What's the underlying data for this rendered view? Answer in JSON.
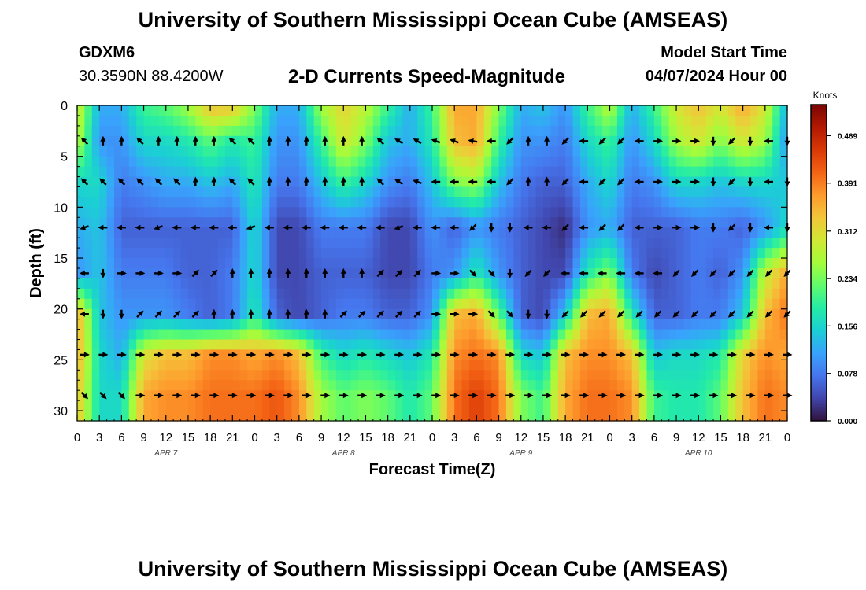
{
  "header": {
    "title": "University of Southern Mississippi Ocean Cube (AMSEAS)",
    "station_id": "GDXM6",
    "station_location": "30.3590N  88.4200W",
    "plot_title": "2-D Currents Speed-Magnitude",
    "model_start_label": "Model Start Time",
    "model_start_value": "04/07/2024 Hour 00"
  },
  "footer": {
    "title": "University of Southern Mississippi Ocean Cube (AMSEAS)"
  },
  "chart_data": {
    "type": "heatmap",
    "title": "2-D Currents Speed-Magnitude",
    "xlabel": "Forecast Time(Z)",
    "ylabel": "Depth (ft)",
    "x_ticks": [
      "0",
      "3",
      "6",
      "9",
      "12",
      "15",
      "18",
      "21",
      "0",
      "3",
      "6",
      "9",
      "12",
      "15",
      "18",
      "21",
      "0",
      "3",
      "6",
      "9",
      "12",
      "15",
      "18",
      "21",
      "0",
      "3",
      "6",
      "9",
      "12",
      "15",
      "18",
      "21",
      "0"
    ],
    "date_labels": [
      {
        "label": "APR 7",
        "tick_index": 4
      },
      {
        "label": "APR 8",
        "tick_index": 12
      },
      {
        "label": "APR 9",
        "tick_index": 20
      },
      {
        "label": "APR 10",
        "tick_index": 28
      }
    ],
    "x_range_hours": [
      0,
      96
    ],
    "y_ticks": [
      0,
      5,
      10,
      15,
      20,
      25,
      30
    ],
    "ylim": [
      0,
      31
    ],
    "depth_rows_ft": [
      3.5,
      7.5,
      12,
      16.5,
      20.5,
      24.5,
      28.5
    ],
    "colorbar": {
      "unit": "Knots",
      "min": 0.0,
      "max": 0.52,
      "tick_values": [
        0.0,
        0.078,
        0.156,
        0.234,
        0.312,
        0.391,
        0.469
      ],
      "tick_labels": [
        "0.000",
        "0.078",
        "0.156",
        "0.234",
        "0.312",
        "0.391",
        "0.469"
      ],
      "colors": [
        "#30123b",
        "#4145ab",
        "#4675ed",
        "#39a2fc",
        "#1bcfd4",
        "#24eca6",
        "#61fc6c",
        "#a4fc3b",
        "#d1e834",
        "#f3c63a",
        "#fe9b2d",
        "#f36315",
        "#d93806",
        "#b11901",
        "#7a0402"
      ]
    },
    "speed_grid_hours": [
      0,
      3,
      6,
      9,
      12,
      15,
      18,
      21,
      24,
      27,
      30,
      33,
      36,
      39,
      42,
      45,
      48,
      51,
      54,
      57,
      60,
      63,
      66,
      69,
      72,
      75,
      78,
      81,
      84,
      87,
      90,
      93,
      96
    ],
    "speed_grid_depths_ft": [
      0,
      3.5,
      7.5,
      12,
      16.5,
      20.5,
      24.5,
      28.5,
      31
    ],
    "speed_knots": [
      [
        0.3,
        0.12,
        0.12,
        0.2,
        0.22,
        0.26,
        0.34,
        0.34,
        0.24,
        0.12,
        0.12,
        0.26,
        0.32,
        0.28,
        0.2,
        0.12,
        0.2,
        0.36,
        0.36,
        0.24,
        0.12,
        0.14,
        0.1,
        0.2,
        0.28,
        0.12,
        0.2,
        0.3,
        0.34,
        0.3,
        0.36,
        0.3,
        0.12
      ],
      [
        0.28,
        0.1,
        0.1,
        0.16,
        0.16,
        0.18,
        0.22,
        0.18,
        0.2,
        0.1,
        0.1,
        0.2,
        0.3,
        0.24,
        0.14,
        0.12,
        0.18,
        0.34,
        0.36,
        0.2,
        0.1,
        0.1,
        0.08,
        0.16,
        0.2,
        0.1,
        0.16,
        0.26,
        0.3,
        0.24,
        0.3,
        0.26,
        0.1
      ],
      [
        0.16,
        0.16,
        0.08,
        0.1,
        0.12,
        0.12,
        0.14,
        0.12,
        0.18,
        0.08,
        0.08,
        0.14,
        0.2,
        0.16,
        0.1,
        0.08,
        0.14,
        0.24,
        0.26,
        0.14,
        0.08,
        0.06,
        0.06,
        0.12,
        0.16,
        0.08,
        0.1,
        0.16,
        0.16,
        0.14,
        0.16,
        0.16,
        0.14
      ],
      [
        0.12,
        0.14,
        0.06,
        0.06,
        0.06,
        0.06,
        0.06,
        0.06,
        0.16,
        0.04,
        0.04,
        0.08,
        0.08,
        0.08,
        0.04,
        0.04,
        0.1,
        0.06,
        0.1,
        0.08,
        0.06,
        0.04,
        0.02,
        0.1,
        0.12,
        0.06,
        0.06,
        0.06,
        0.08,
        0.08,
        0.06,
        0.1,
        0.16
      ],
      [
        0.1,
        0.14,
        0.08,
        0.08,
        0.08,
        0.06,
        0.06,
        0.08,
        0.16,
        0.04,
        0.04,
        0.06,
        0.06,
        0.06,
        0.04,
        0.04,
        0.08,
        0.1,
        0.18,
        0.1,
        0.06,
        0.04,
        0.04,
        0.18,
        0.24,
        0.08,
        0.04,
        0.06,
        0.08,
        0.06,
        0.1,
        0.28,
        0.36
      ],
      [
        0.36,
        0.14,
        0.1,
        0.1,
        0.1,
        0.08,
        0.06,
        0.08,
        0.18,
        0.06,
        0.04,
        0.06,
        0.08,
        0.08,
        0.06,
        0.06,
        0.1,
        0.34,
        0.36,
        0.22,
        0.06,
        0.04,
        0.14,
        0.34,
        0.36,
        0.18,
        0.06,
        0.06,
        0.08,
        0.08,
        0.14,
        0.34,
        0.4
      ],
      [
        0.36,
        0.16,
        0.12,
        0.3,
        0.34,
        0.34,
        0.38,
        0.38,
        0.36,
        0.38,
        0.34,
        0.2,
        0.16,
        0.18,
        0.16,
        0.14,
        0.18,
        0.38,
        0.4,
        0.38,
        0.16,
        0.14,
        0.34,
        0.38,
        0.38,
        0.34,
        0.14,
        0.16,
        0.16,
        0.18,
        0.32,
        0.38,
        0.36
      ],
      [
        0.34,
        0.16,
        0.16,
        0.36,
        0.38,
        0.38,
        0.4,
        0.4,
        0.4,
        0.42,
        0.38,
        0.26,
        0.22,
        0.24,
        0.22,
        0.18,
        0.22,
        0.4,
        0.44,
        0.4,
        0.24,
        0.2,
        0.36,
        0.4,
        0.4,
        0.38,
        0.2,
        0.18,
        0.18,
        0.22,
        0.34,
        0.4,
        0.38
      ],
      [
        0.34,
        0.16,
        0.16,
        0.36,
        0.38,
        0.38,
        0.4,
        0.4,
        0.4,
        0.42,
        0.38,
        0.26,
        0.22,
        0.24,
        0.22,
        0.18,
        0.22,
        0.4,
        0.44,
        0.4,
        0.24,
        0.2,
        0.36,
        0.4,
        0.4,
        0.38,
        0.2,
        0.18,
        0.18,
        0.22,
        0.34,
        0.4,
        0.38
      ]
    ],
    "vector_times_hours": [
      1,
      3.5,
      6,
      8.5,
      11,
      13.5,
      16,
      18.5,
      21,
      23.5,
      26,
      28.5,
      31,
      33.5,
      36,
      38.5,
      41,
      43.5,
      46,
      48.5,
      51,
      53.5,
      56,
      58.5,
      61,
      63.5,
      66,
      68.5,
      71,
      73.5,
      76,
      78.5,
      81,
      83.5,
      86,
      88.5,
      91,
      93.5,
      96
    ],
    "current_direction_deg": [
      [
        315,
        0,
        0,
        315,
        0,
        0,
        0,
        0,
        315,
        315,
        0,
        0,
        0,
        0,
        0,
        0,
        315,
        300,
        300,
        290,
        290,
        280,
        270,
        225,
        0,
        0,
        225,
        270,
        225,
        225,
        270,
        90,
        90,
        90,
        180,
        225,
        180,
        270,
        180
      ],
      [
        315,
        315,
        315,
        315,
        315,
        315,
        0,
        0,
        315,
        315,
        0,
        0,
        0,
        0,
        0,
        0,
        315,
        300,
        290,
        270,
        270,
        270,
        270,
        225,
        0,
        0,
        225,
        270,
        225,
        225,
        270,
        90,
        90,
        90,
        180,
        225,
        180,
        270,
        180
      ],
      [
        250,
        270,
        270,
        270,
        250,
        270,
        270,
        270,
        270,
        250,
        270,
        270,
        270,
        270,
        270,
        270,
        270,
        250,
        270,
        270,
        270,
        225,
        180,
        180,
        270,
        270,
        225,
        270,
        225,
        225,
        270,
        90,
        90,
        90,
        180,
        225,
        180,
        270,
        180
      ],
      [
        270,
        180,
        90,
        90,
        90,
        90,
        45,
        45,
        0,
        0,
        0,
        0,
        0,
        0,
        0,
        0,
        45,
        45,
        45,
        90,
        90,
        135,
        135,
        180,
        225,
        225,
        270,
        270,
        270,
        270,
        270,
        270,
        225,
        225,
        225,
        225,
        225,
        225,
        225
      ],
      [
        270,
        180,
        180,
        45,
        45,
        45,
        45,
        0,
        0,
        0,
        0,
        0,
        0,
        0,
        45,
        45,
        45,
        45,
        45,
        90,
        90,
        90,
        135,
        135,
        180,
        180,
        225,
        225,
        225,
        225,
        225,
        225,
        225,
        225,
        225,
        225,
        225,
        225,
        225
      ],
      [
        90,
        90,
        90,
        90,
        90,
        90,
        90,
        90,
        90,
        90,
        90,
        90,
        90,
        90,
        90,
        90,
        90,
        90,
        90,
        90,
        90,
        90,
        90,
        90,
        90,
        90,
        90,
        90,
        90,
        90,
        90,
        90,
        90,
        90,
        90,
        90,
        90,
        90,
        90
      ],
      [
        135,
        135,
        135,
        90,
        90,
        90,
        90,
        90,
        90,
        90,
        90,
        90,
        90,
        90,
        90,
        90,
        90,
        90,
        90,
        90,
        90,
        90,
        90,
        90,
        90,
        90,
        90,
        90,
        90,
        90,
        90,
        90,
        90,
        90,
        90,
        90,
        90,
        90,
        90
      ]
    ]
  }
}
